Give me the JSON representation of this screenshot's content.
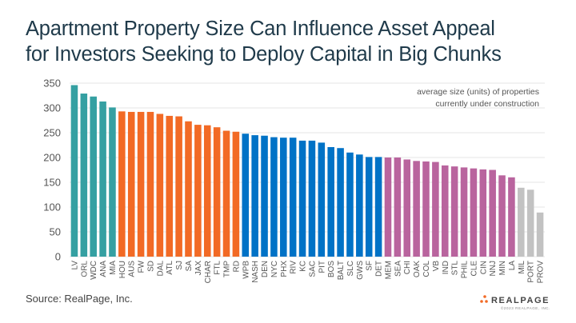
{
  "title_line1": "Apartment Property Size Can Influence Asset Appeal",
  "title_line2": "for Investors Seeking to Deploy Capital in Big Chunks",
  "source": "Source: RealPage, Inc.",
  "logo": {
    "text": "REALPAGE",
    "subtext": "©2023 REALPAGE, INC."
  },
  "colors": {
    "teal": "#35a0a2",
    "orange": "#f26a25",
    "blue": "#0072c6",
    "purple": "#b9649e",
    "gray": "#c2c2c2"
  },
  "chart_data": {
    "type": "bar",
    "title": "",
    "xlabel": "",
    "ylabel": "",
    "annotation": [
      "average size (units) of properties",
      "currently under construction"
    ],
    "ylim": [
      0,
      350
    ],
    "yticks": [
      0,
      50,
      100,
      150,
      200,
      250,
      300,
      350
    ],
    "grid": true,
    "categories": [
      "LV",
      "ORL",
      "WDC",
      "ANA",
      "MIA",
      "HOU",
      "AUS",
      "FW",
      "SD",
      "DAL",
      "ATL",
      "SJ",
      "SA",
      "JAX",
      "CHAR",
      "FTL",
      "TMP",
      "RD",
      "WPB",
      "NASH",
      "DEN",
      "NYC",
      "PHX",
      "RIV",
      "KC",
      "SAC",
      "PIT",
      "BOS",
      "BALT",
      "SLC",
      "GWS",
      "SF",
      "DET",
      "MEM",
      "SEA",
      "CHI",
      "OAK",
      "COL",
      "VB",
      "IND",
      "STL",
      "PHIL",
      "CLE",
      "CIN",
      "NNJ",
      "MIN",
      "LA",
      "MIL",
      "PORT",
      "PROV"
    ],
    "values": [
      346,
      329,
      323,
      313,
      301,
      293,
      292,
      292,
      292,
      288,
      284,
      283,
      273,
      266,
      265,
      261,
      254,
      252,
      248,
      245,
      244,
      241,
      240,
      240,
      234,
      234,
      230,
      221,
      219,
      210,
      206,
      201,
      201,
      200,
      200,
      196,
      193,
      192,
      191,
      184,
      182,
      180,
      178,
      176,
      175,
      164,
      160,
      139,
      135,
      89
    ],
    "color_groups": [
      "teal",
      "teal",
      "teal",
      "teal",
      "teal",
      "orange",
      "orange",
      "orange",
      "orange",
      "orange",
      "orange",
      "orange",
      "orange",
      "orange",
      "orange",
      "orange",
      "orange",
      "orange",
      "blue",
      "blue",
      "blue",
      "blue",
      "blue",
      "blue",
      "blue",
      "blue",
      "blue",
      "blue",
      "blue",
      "blue",
      "blue",
      "blue",
      "blue",
      "purple",
      "purple",
      "purple",
      "purple",
      "purple",
      "purple",
      "purple",
      "purple",
      "purple",
      "purple",
      "purple",
      "purple",
      "purple",
      "purple",
      "gray",
      "gray",
      "gray"
    ]
  }
}
